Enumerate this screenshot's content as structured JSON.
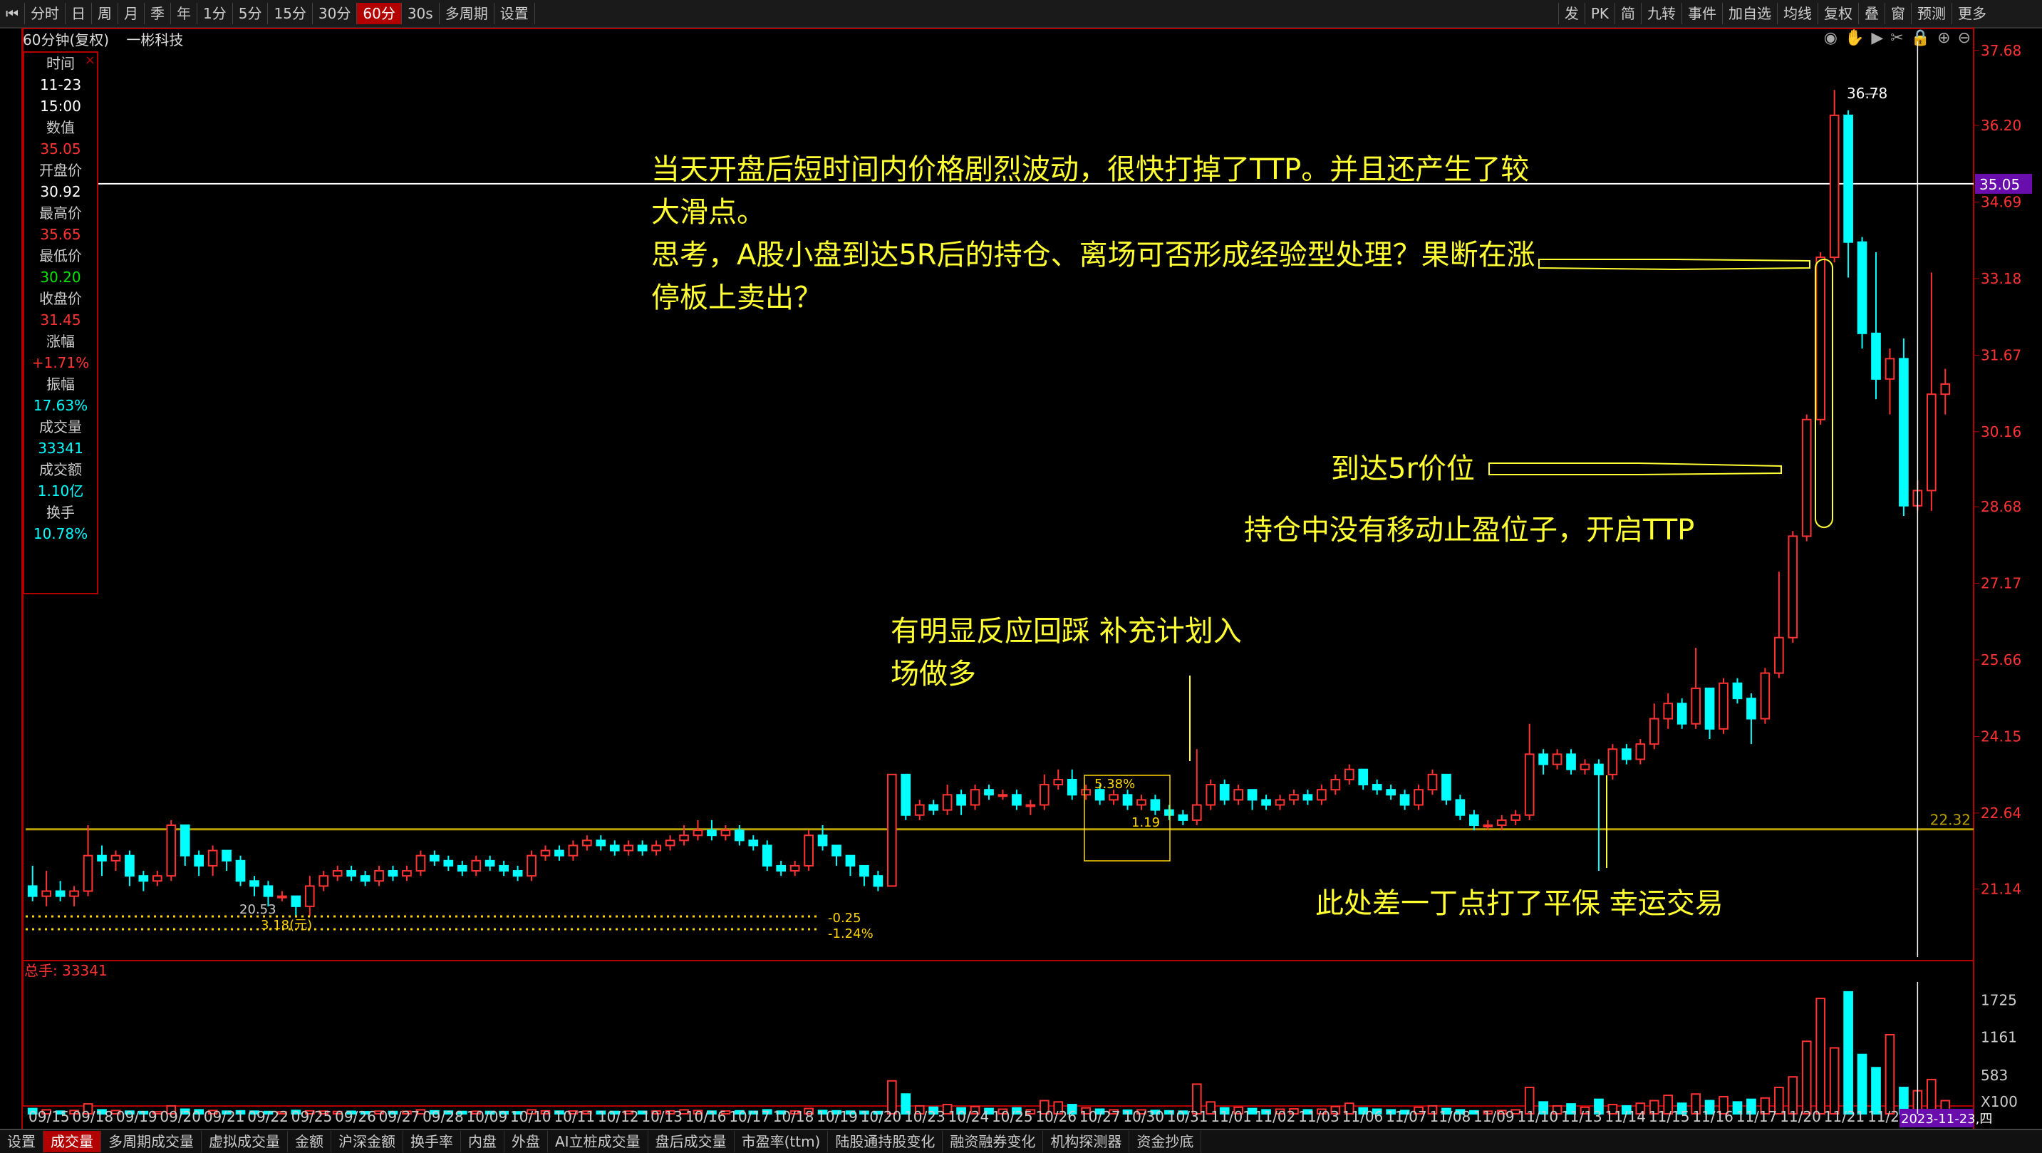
{
  "toolbar": {
    "items": [
      "分时",
      "日",
      "周",
      "月",
      "季",
      "年",
      "1分",
      "5分",
      "15分",
      "30分",
      "60分",
      "30s",
      "多周期",
      "设置"
    ],
    "active_index": 10,
    "right_items": [
      "发",
      "PK",
      "简",
      "九转",
      "事件",
      "加自选",
      "均线",
      "复权",
      "叠",
      "窗",
      "预测",
      "更多"
    ]
  },
  "subtitle": {
    "period": "60分钟(复权)",
    "stock_name": "一彬科技"
  },
  "info_panel": {
    "rows": [
      {
        "label": "时间",
        "value": "11-23",
        "cls": "val"
      },
      {
        "label": "",
        "value": "15:00",
        "cls": "val"
      },
      {
        "label": "数值",
        "value": "35.05",
        "cls": "up"
      },
      {
        "label": "开盘价",
        "value": "30.92",
        "cls": "val"
      },
      {
        "label": "最高价",
        "value": "35.65",
        "cls": "up"
      },
      {
        "label": "最低价",
        "value": "30.20",
        "cls": "dn"
      },
      {
        "label": "收盘价",
        "value": "31.45",
        "cls": "up"
      },
      {
        "label": "涨幅",
        "value": "+1.71%",
        "cls": "up"
      },
      {
        "label": "振幅",
        "value": "17.63%",
        "cls": "cy"
      },
      {
        "label": "成交量",
        "value": "33341",
        "cls": "cy"
      },
      {
        "label": "成交额",
        "value": "1.10亿",
        "cls": "cy"
      },
      {
        "label": "换手",
        "value": "10.78%",
        "cls": "cy"
      }
    ],
    "close": "×"
  },
  "annotations": {
    "a1_line1": "当天开盘后短时间内价格剧烈波动，很快打掉了TTP。并且还产生了较",
    "a1_line2": "大滑点。",
    "a1_line3": "思考，A股小盘到达5R后的持仓、离场可否形成经验型处理？果断在涨",
    "a1_line4": "停板上卖出？",
    "a2": "到达5r价位",
    "a3": "持仓中没有移动止盈位子，开启TTP",
    "a4_line1": "有明显反应回踩 补充计划入",
    "a4_line2": "场做多",
    "a5": "此处差一丁点打了平保 幸运交易"
  },
  "volume": {
    "label": "总手: 33341",
    "multiplier": "X100"
  },
  "bottom_tabs": {
    "items": [
      "设置",
      "成交量",
      "多周期成交量",
      "虚拟成交量",
      "金额",
      "沪深金额",
      "换手率",
      "内盘",
      "外盘",
      "AI立桩成交量",
      "盘后成交量",
      "市盈率(ttm)",
      "陆股通持股变化",
      "融资融券变化",
      "机构探测器",
      "资金抄底"
    ],
    "active_index": 1
  },
  "chart_data": {
    "type": "candlestick",
    "price_axis": {
      "ticks": [
        "37.68",
        "36.20",
        "34.69",
        "33.18",
        "31.67",
        "30.16",
        "28.68",
        "27.17",
        "25.66",
        "24.15",
        "22.64",
        "21.14"
      ],
      "ylim": [
        19.8,
        38.0
      ]
    },
    "volume_axis": {
      "ticks": [
        "1725",
        "1161",
        "583"
      ],
      "ylim": [
        0,
        2000
      ]
    },
    "current_price_label": "35.05",
    "support_label": "22.32",
    "high_marker": "36.78",
    "low_marker": "20.53",
    "low_marker2": "3.18(元)",
    "range_box_text": [
      "5.38%",
      "1.19"
    ],
    "change_labels": [
      "-0.25",
      "-1.24%"
    ],
    "date_axis_label": "2023-11-23,四",
    "dates": [
      "09/15",
      "09/18",
      "09/19",
      "09/20",
      "09/21",
      "09/22",
      "09/25",
      "09/26",
      "09/27",
      "09/28",
      "10/09",
      "10/10",
      "10/11",
      "10/12",
      "10/13",
      "10/16",
      "10/17",
      "10/18",
      "10/19",
      "10/20",
      "10/23",
      "10/24",
      "10/25",
      "10/26",
      "10/27",
      "10/30",
      "10/31",
      "11/01",
      "11/02",
      "11/03",
      "11/06",
      "11/07",
      "11/08",
      "11/09",
      "11/10",
      "11/13",
      "11/14",
      "11/15",
      "11/16",
      "11/17",
      "11/20",
      "11/21",
      "11/22",
      "11/23"
    ],
    "candles": [
      [
        21.2,
        21.0,
        21.6,
        20.9
      ],
      [
        21.0,
        21.1,
        21.5,
        20.8
      ],
      [
        21.1,
        21.0,
        21.3,
        20.9
      ],
      [
        21.0,
        21.1,
        21.2,
        20.8
      ],
      [
        21.1,
        21.8,
        22.4,
        21.0
      ],
      [
        21.8,
        21.7,
        22.0,
        21.4
      ],
      [
        21.7,
        21.8,
        21.9,
        21.5
      ],
      [
        21.8,
        21.4,
        21.9,
        21.2
      ],
      [
        21.4,
        21.3,
        21.5,
        21.1
      ],
      [
        21.3,
        21.4,
        21.5,
        21.2
      ],
      [
        21.4,
        22.4,
        22.5,
        21.3
      ],
      [
        22.4,
        21.8,
        22.4,
        21.6
      ],
      [
        21.8,
        21.6,
        21.9,
        21.4
      ],
      [
        21.6,
        21.9,
        22.0,
        21.4
      ],
      [
        21.9,
        21.7,
        21.9,
        21.5
      ],
      [
        21.7,
        21.3,
        21.8,
        21.2
      ],
      [
        21.3,
        21.2,
        21.4,
        21.0
      ],
      [
        21.2,
        21.0,
        21.3,
        20.8
      ],
      [
        21.0,
        21.0,
        21.1,
        20.9
      ],
      [
        21.0,
        20.8,
        21.0,
        20.6
      ],
      [
        20.8,
        21.2,
        21.4,
        20.6
      ],
      [
        21.2,
        21.4,
        21.5,
        21.1
      ],
      [
        21.4,
        21.5,
        21.6,
        21.3
      ],
      [
        21.5,
        21.4,
        21.6,
        21.3
      ],
      [
        21.4,
        21.3,
        21.5,
        21.2
      ],
      [
        21.3,
        21.5,
        21.6,
        21.2
      ],
      [
        21.5,
        21.4,
        21.6,
        21.3
      ],
      [
        21.4,
        21.5,
        21.6,
        21.3
      ],
      [
        21.5,
        21.8,
        21.9,
        21.4
      ],
      [
        21.8,
        21.7,
        21.9,
        21.6
      ],
      [
        21.7,
        21.6,
        21.8,
        21.5
      ],
      [
        21.6,
        21.5,
        21.7,
        21.4
      ],
      [
        21.5,
        21.7,
        21.8,
        21.4
      ],
      [
        21.7,
        21.6,
        21.8,
        21.5
      ],
      [
        21.6,
        21.5,
        21.7,
        21.4
      ],
      [
        21.5,
        21.4,
        21.6,
        21.3
      ],
      [
        21.4,
        21.8,
        21.9,
        21.3
      ],
      [
        21.8,
        21.9,
        22.0,
        21.7
      ],
      [
        21.9,
        21.8,
        22.0,
        21.7
      ],
      [
        21.8,
        22.0,
        22.1,
        21.7
      ],
      [
        22.0,
        22.1,
        22.2,
        21.9
      ],
      [
        22.1,
        22.0,
        22.2,
        21.9
      ],
      [
        22.0,
        21.9,
        22.1,
        21.8
      ],
      [
        21.9,
        22.0,
        22.1,
        21.8
      ],
      [
        22.0,
        21.9,
        22.1,
        21.8
      ],
      [
        21.9,
        22.0,
        22.1,
        21.8
      ],
      [
        22.0,
        22.1,
        22.2,
        21.9
      ],
      [
        22.1,
        22.2,
        22.4,
        22.0
      ],
      [
        22.2,
        22.3,
        22.5,
        22.1
      ],
      [
        22.3,
        22.2,
        22.5,
        22.1
      ],
      [
        22.2,
        22.3,
        22.4,
        22.1
      ],
      [
        22.3,
        22.1,
        22.4,
        22.0
      ],
      [
        22.1,
        22.0,
        22.2,
        21.9
      ],
      [
        22.0,
        21.6,
        22.1,
        21.5
      ],
      [
        21.6,
        21.5,
        21.7,
        21.4
      ],
      [
        21.5,
        21.6,
        21.7,
        21.4
      ],
      [
        21.6,
        22.2,
        22.3,
        21.5
      ],
      [
        22.2,
        22.0,
        22.4,
        21.9
      ],
      [
        22.0,
        21.8,
        22.0,
        21.6
      ],
      [
        21.8,
        21.6,
        21.8,
        21.4
      ],
      [
        21.6,
        21.4,
        21.6,
        21.2
      ],
      [
        21.4,
        21.2,
        21.5,
        21.1
      ],
      [
        21.2,
        23.4,
        23.4,
        21.2
      ],
      [
        23.4,
        22.6,
        23.4,
        22.5
      ],
      [
        22.6,
        22.8,
        22.9,
        22.5
      ],
      [
        22.8,
        22.7,
        22.9,
        22.6
      ],
      [
        22.7,
        23.0,
        23.2,
        22.6
      ],
      [
        23.0,
        22.8,
        23.1,
        22.6
      ],
      [
        22.8,
        23.1,
        23.2,
        22.7
      ],
      [
        23.1,
        23.0,
        23.2,
        22.9
      ],
      [
        23.0,
        23.0,
        23.1,
        22.9
      ],
      [
        23.0,
        22.8,
        23.1,
        22.7
      ],
      [
        22.8,
        22.8,
        22.9,
        22.6
      ],
      [
        22.8,
        23.2,
        23.4,
        22.7
      ],
      [
        23.2,
        23.3,
        23.5,
        23.1
      ],
      [
        23.3,
        23.0,
        23.5,
        22.9
      ],
      [
        23.0,
        23.1,
        23.2,
        22.9
      ],
      [
        23.1,
        22.9,
        23.2,
        22.8
      ],
      [
        22.9,
        23.0,
        23.1,
        22.8
      ],
      [
        23.0,
        22.8,
        23.1,
        22.7
      ],
      [
        22.8,
        22.9,
        23.0,
        22.7
      ],
      [
        22.9,
        22.7,
        23.0,
        22.6
      ],
      [
        22.7,
        22.6,
        22.8,
        22.5
      ],
      [
        22.6,
        22.5,
        22.7,
        22.4
      ],
      [
        22.5,
        22.8,
        23.9,
        22.4
      ],
      [
        22.8,
        23.2,
        23.3,
        22.7
      ],
      [
        23.2,
        22.9,
        23.3,
        22.8
      ],
      [
        22.9,
        23.1,
        23.2,
        22.8
      ],
      [
        23.1,
        22.9,
        23.1,
        22.7
      ],
      [
        22.9,
        22.8,
        23.0,
        22.7
      ],
      [
        22.8,
        22.9,
        23.0,
        22.7
      ],
      [
        22.9,
        23.0,
        23.1,
        22.8
      ],
      [
        23.0,
        22.9,
        23.1,
        22.8
      ],
      [
        22.9,
        23.1,
        23.2,
        22.8
      ],
      [
        23.1,
        23.3,
        23.4,
        23.0
      ],
      [
        23.3,
        23.5,
        23.6,
        23.2
      ],
      [
        23.5,
        23.2,
        23.5,
        23.1
      ],
      [
        23.2,
        23.1,
        23.3,
        23.0
      ],
      [
        23.1,
        23.0,
        23.2,
        22.9
      ],
      [
        23.0,
        22.8,
        23.1,
        22.7
      ],
      [
        22.8,
        23.1,
        23.2,
        22.7
      ],
      [
        23.1,
        23.4,
        23.5,
        23.0
      ],
      [
        23.4,
        22.9,
        23.4,
        22.8
      ],
      [
        22.9,
        22.6,
        23.0,
        22.5
      ],
      [
        22.6,
        22.4,
        22.7,
        22.3
      ],
      [
        22.4,
        22.4,
        22.5,
        22.3
      ],
      [
        22.4,
        22.5,
        22.6,
        22.3
      ],
      [
        22.5,
        22.6,
        22.7,
        22.4
      ],
      [
        22.6,
        23.8,
        24.4,
        22.5
      ],
      [
        23.8,
        23.6,
        23.9,
        23.4
      ],
      [
        23.6,
        23.8,
        23.9,
        23.5
      ],
      [
        23.8,
        23.5,
        23.9,
        23.4
      ],
      [
        23.5,
        23.6,
        23.7,
        23.4
      ],
      [
        23.6,
        23.4,
        23.7,
        21.5
      ],
      [
        23.4,
        23.9,
        24.0,
        23.3
      ],
      [
        23.9,
        23.7,
        24.0,
        23.6
      ],
      [
        23.7,
        24.0,
        24.1,
        23.6
      ],
      [
        24.0,
        24.5,
        24.8,
        23.9
      ],
      [
        24.5,
        24.8,
        25.0,
        24.3
      ],
      [
        24.8,
        24.4,
        24.9,
        24.3
      ],
      [
        24.4,
        25.1,
        25.9,
        24.3
      ],
      [
        25.1,
        24.3,
        25.1,
        24.1
      ],
      [
        24.3,
        25.2,
        25.3,
        24.2
      ],
      [
        25.2,
        24.9,
        25.3,
        24.8
      ],
      [
        24.9,
        24.5,
        25.0,
        24.0
      ],
      [
        24.5,
        25.4,
        25.5,
        24.4
      ],
      [
        25.4,
        26.1,
        27.4,
        25.3
      ],
      [
        26.1,
        28.1,
        28.2,
        26.0
      ],
      [
        28.1,
        30.4,
        30.5,
        28.0
      ],
      [
        30.4,
        33.6,
        33.7,
        30.3
      ],
      [
        33.6,
        36.4,
        36.9,
        33.5
      ],
      [
        36.4,
        33.9,
        36.5,
        33.2
      ],
      [
        33.9,
        32.1,
        34.0,
        31.8
      ],
      [
        32.1,
        31.2,
        33.7,
        30.8
      ],
      [
        31.2,
        31.6,
        31.8,
        30.5
      ],
      [
        31.6,
        28.7,
        32.0,
        28.5
      ],
      [
        28.7,
        29.0,
        29.2,
        28.6
      ],
      [
        29.0,
        30.9,
        33.3,
        28.6
      ],
      [
        30.9,
        31.1,
        31.4,
        30.5
      ]
    ],
    "volumes": [
      80,
      60,
      40,
      50,
      150,
      60,
      50,
      40,
      35,
      30,
      120,
      70,
      60,
      50,
      40,
      45,
      40,
      35,
      30,
      50,
      45,
      40,
      35,
      38,
      32,
      40,
      35,
      38,
      60,
      45,
      40,
      35,
      38,
      36,
      34,
      30,
      60,
      45,
      40,
      42,
      40,
      38,
      36,
      40,
      38,
      42,
      45,
      60,
      50,
      40,
      42,
      45,
      38,
      60,
      40,
      42,
      80,
      50,
      45,
      40,
      38,
      35,
      500,
      300,
      120,
      100,
      140,
      90,
      110,
      80,
      70,
      90,
      60,
      200,
      180,
      140,
      90,
      70,
      60,
      55,
      60,
      50,
      45,
      40,
      450,
      180,
      90,
      100,
      80,
      60,
      70,
      75,
      60,
      70,
      110,
      160,
      90,
      70,
      60,
      50,
      100,
      120,
      80,
      60,
      45,
      40,
      50,
      60,
      400,
      180,
      120,
      150,
      100,
      220,
      140,
      120,
      160,
      200,
      280,
      160,
      300,
      200,
      260,
      180,
      220,
      240,
      400,
      560,
      1100,
      1750,
      1000,
      1850,
      900,
      700,
      1200,
      400,
      350,
      520,
      200
    ]
  }
}
